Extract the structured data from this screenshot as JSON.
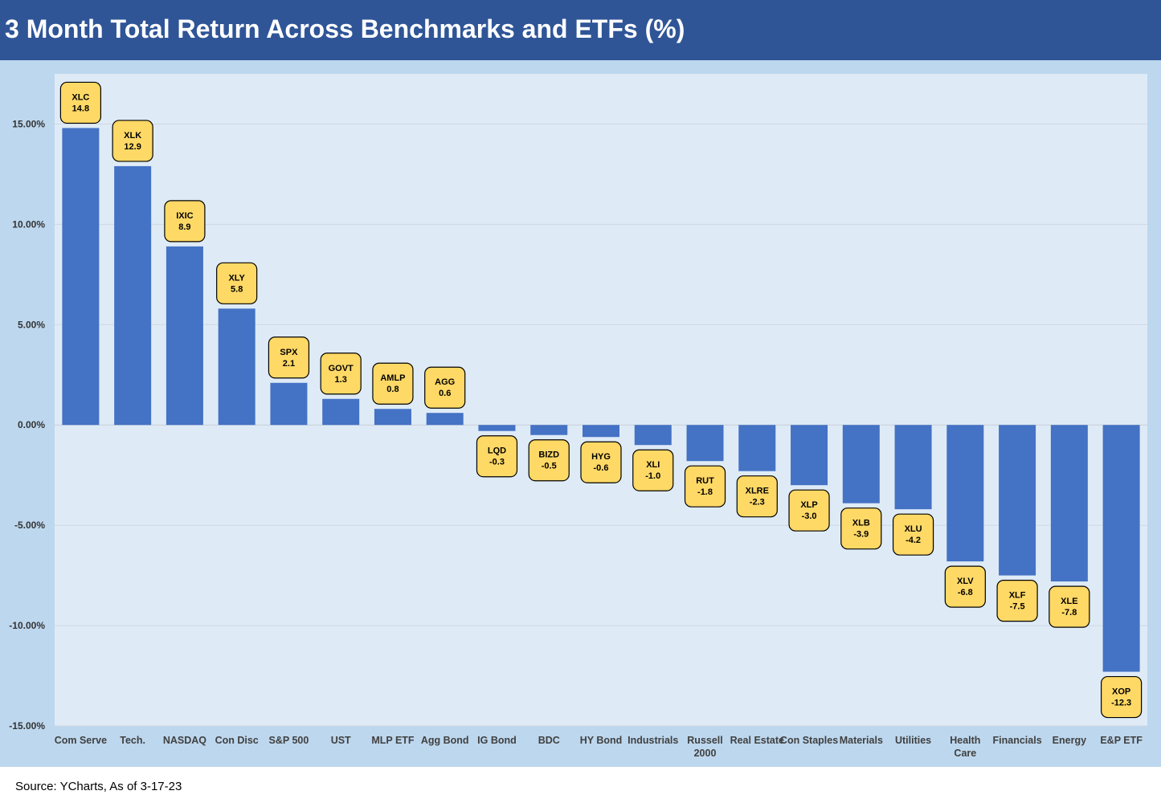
{
  "title": "3 Month Total Return Across Benchmarks and ETFs (%)",
  "source": "Source: YCharts, As of 3-17-23",
  "colors": {
    "title_bar": "#2f5597",
    "outer_background": "#bdd7ee",
    "plot_background": "#deebf7",
    "bar": "#4472c4",
    "badge_fill": "#ffd966"
  },
  "chart_data": {
    "type": "bar",
    "title": "3 Month Total Return Across Benchmarks and ETFs (%)",
    "xlabel": "",
    "ylabel": "",
    "ylim": [
      -15,
      17.5
    ],
    "yticks": [
      15,
      10,
      5,
      0,
      -5,
      -10,
      -15
    ],
    "ytick_labels": [
      "15.00%",
      "10.00%",
      "5.00%",
      "0.00%",
      "-5.00%",
      "-10.00%",
      "-15.00%"
    ],
    "grid": true,
    "legend": "none",
    "categories": [
      "Com Serve",
      "Tech.",
      "NASDAQ",
      "Con Disc",
      "S&P 500",
      "UST",
      "MLP ETF",
      "Agg Bond",
      "IG Bond",
      "BDC",
      "HY Bond",
      "Industrials",
      "Russell 2000",
      "Real Estate",
      "Con Staples",
      "Materials",
      "Utilities",
      "Health Care",
      "Financials",
      "Energy",
      "E&P ETF"
    ],
    "category_lines": [
      [
        "Com Serve"
      ],
      [
        "Tech."
      ],
      [
        "NASDAQ"
      ],
      [
        "Con Disc"
      ],
      [
        "S&P 500"
      ],
      [
        "UST"
      ],
      [
        "MLP ETF"
      ],
      [
        "Agg Bond"
      ],
      [
        "IG Bond"
      ],
      [
        "BDC"
      ],
      [
        "HY Bond"
      ],
      [
        "Industrials"
      ],
      [
        "Russell",
        "2000"
      ],
      [
        "Real Estate"
      ],
      [
        "Con Staples"
      ],
      [
        "Materials"
      ],
      [
        "Utilities"
      ],
      [
        "Health",
        "Care"
      ],
      [
        "Financials"
      ],
      [
        "Energy"
      ],
      [
        "E&P ETF"
      ]
    ],
    "tickers": [
      "XLC",
      "XLK",
      "IXIC",
      "XLY",
      "SPX",
      "GOVT",
      "AMLP",
      "AGG",
      "LQD",
      "BIZD",
      "HYG",
      "XLI",
      "RUT",
      "XLRE",
      "XLP",
      "XLB",
      "XLU",
      "XLV",
      "XLF",
      "XLE",
      "XOP"
    ],
    "value_labels": [
      "14.8",
      "12.9",
      "8.9",
      "5.8",
      "2.1",
      "1.3",
      "0.8",
      "0.6",
      "-0.3",
      "-0.5",
      "-0.6",
      "-1.0",
      "-1.8",
      "-2.3",
      "-3.0",
      "-3.9",
      "-4.2",
      "-6.8",
      "-7.5",
      "-7.8",
      "-12.3"
    ],
    "values": [
      14.8,
      12.9,
      8.9,
      5.8,
      2.1,
      1.3,
      0.8,
      0.6,
      -0.3,
      -0.5,
      -0.6,
      -1.0,
      -1.8,
      -2.3,
      -3.0,
      -3.9,
      -4.2,
      -6.8,
      -7.5,
      -7.8,
      -12.3
    ]
  }
}
